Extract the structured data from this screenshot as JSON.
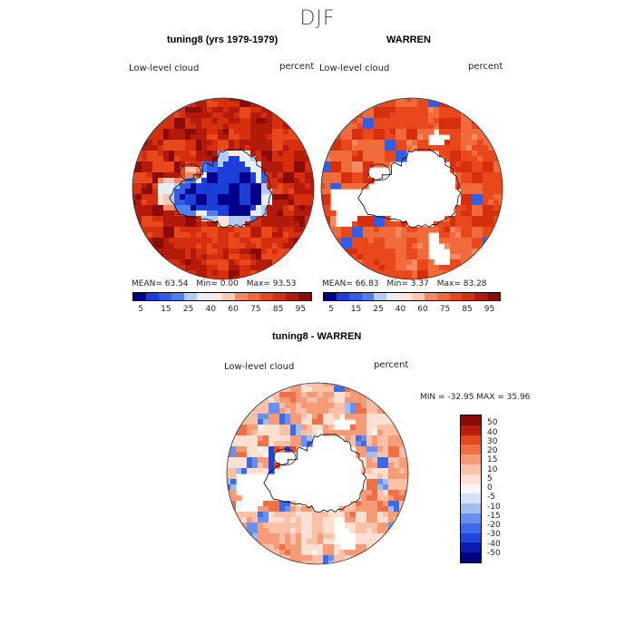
{
  "season": "DJF",
  "variable_label": "Low-level cloud",
  "unit_label": "percent",
  "colors": {
    "blue_scale": [
      "#00008b",
      "#0a1db4",
      "#1b3fd8",
      "#2f5fe8",
      "#4f80ee",
      "#7fa6f2",
      "#b4cbf5",
      "#e8eef8"
    ],
    "red_scale": [
      "#fde6dc",
      "#fbc9b3",
      "#f8a98a",
      "#f58a62",
      "#f06a3c",
      "#e8481b",
      "#d62f0d",
      "#b31a0a",
      "#8b0c06"
    ],
    "land": "#ffffff",
    "coast": "#000000"
  },
  "chart_data": [
    {
      "type": "heatmap",
      "projection": "south-polar-stereographic",
      "title": "tuning8 (yrs 1979-1979)",
      "field_label": "Low-level cloud",
      "unit": "percent",
      "stats": {
        "mean": "63.54",
        "min": "0.00",
        "max": "93.53"
      },
      "stats_text": {
        "mean_label": "MEAN=",
        "min_label": "Min=",
        "max_label": "Max="
      },
      "colorbar": {
        "levels": [
          "5",
          "15",
          "25",
          "40",
          "60",
          "75",
          "85",
          "95"
        ],
        "range": [
          0,
          100
        ]
      },
      "pattern": "ocean high (75-95%), continent low (0-15%), coastal/Ross Sea moderate"
    },
    {
      "type": "heatmap",
      "projection": "south-polar-stereographic",
      "title": "WARREN",
      "field_label": "Low-level cloud",
      "unit": "percent",
      "stats": {
        "mean": "66.83",
        "min": "3.37",
        "max": "83.28"
      },
      "stats_text": {
        "mean_label": "MEAN=",
        "min_label": "Min=",
        "max_label": "Max="
      },
      "colorbar": {
        "levels": [
          "5",
          "15",
          "25",
          "40",
          "60",
          "75",
          "85",
          "95"
        ],
        "range": [
          0,
          100
        ]
      },
      "pattern": "observations over ocean 60-85%, missing over continent and some sectors"
    },
    {
      "type": "heatmap",
      "projection": "south-polar-stereographic",
      "title": "tuning8 - WARREN",
      "field_label": "Low-level cloud",
      "unit": "percent",
      "minmax_text": "MIN = -32.95 MAX =  35.96",
      "stats": {
        "min": -32.95,
        "max": 35.96
      },
      "colorbar": {
        "levels": [
          "50",
          "40",
          "30",
          "20",
          "15",
          "10",
          "5",
          "0",
          "-5",
          "-10",
          "-15",
          "-20",
          "-30",
          "-40",
          "-50"
        ],
        "range": [
          -50,
          50
        ]
      },
      "pattern": "difference mostly 5-20% positive, negative patches near Antarctic Peninsula and Ross Sea"
    }
  ]
}
